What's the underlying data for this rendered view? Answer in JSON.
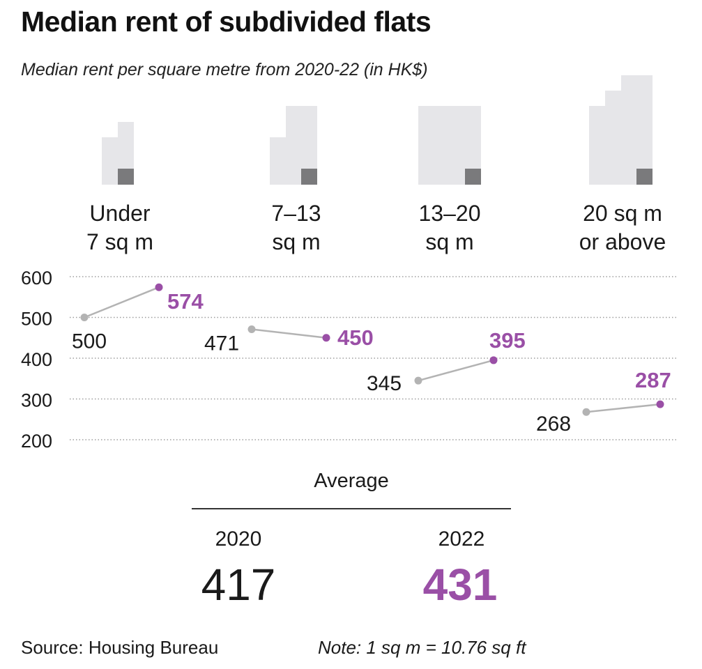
{
  "title": "Median rent of subdivided flats",
  "subtitle": "Median rent per square metre from 2020-22 (in HK$)",
  "categories": [
    {
      "line1": "Under",
      "line2": "7 sq m"
    },
    {
      "line1": "7–13",
      "line2": "sq m"
    },
    {
      "line1": "13–20",
      "line2": "sq m"
    },
    {
      "line1": "20 sq m",
      "line2": "or above"
    }
  ],
  "average": {
    "label": "Average",
    "year_2020": "2020",
    "year_2022": "2022",
    "value_2020": "417",
    "value_2022": "431"
  },
  "source": "Source: Housing Bureau",
  "note": "Note: 1 sq m = 10.76 sq ft",
  "colors": {
    "year_2020": "#b3b3b3",
    "year_2022": "#9a4fa6",
    "grid": "#9e9e9e",
    "floorplan_light": "#e6e6e9",
    "floorplan_dark": "#7a7a7c"
  },
  "chart_data": {
    "type": "line",
    "categories": [
      "Under 7 sq m",
      "7–13 sq m",
      "13–20 sq m",
      "20 sq m or above"
    ],
    "series": [
      {
        "name": "2020",
        "values": [
          500,
          471,
          345,
          268
        ]
      },
      {
        "name": "2022",
        "values": [
          574,
          450,
          395,
          287
        ]
      }
    ],
    "yticks": [
      200,
      300,
      400,
      500,
      600
    ],
    "ylim": [
      200,
      600
    ],
    "grid": true
  }
}
